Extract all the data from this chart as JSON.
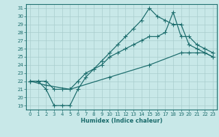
{
  "xlabel": "Humidex (Indice chaleur)",
  "ylabel": "",
  "bg_color": "#c8e8e8",
  "line_color": "#1a6b6b",
  "grid_color": "#a8cccc",
  "xlim": [
    -0.5,
    23.5
  ],
  "ylim": [
    18.5,
    31.5
  ],
  "xticks": [
    0,
    1,
    2,
    3,
    4,
    5,
    6,
    7,
    8,
    9,
    10,
    11,
    12,
    13,
    14,
    15,
    16,
    17,
    18,
    19,
    20,
    21,
    22,
    23
  ],
  "yticks": [
    19,
    20,
    21,
    22,
    23,
    24,
    25,
    26,
    27,
    28,
    29,
    30,
    31
  ],
  "curve1_x": [
    0,
    1,
    2,
    3,
    4,
    5,
    6,
    7,
    8,
    9,
    10,
    11,
    12,
    13,
    14,
    15,
    16,
    17,
    18,
    19,
    20,
    21,
    22,
    23
  ],
  "curve1_y": [
    22.0,
    22.0,
    21.0,
    19.0,
    19.0,
    19.0,
    21.0,
    22.5,
    23.5,
    24.5,
    25.5,
    26.5,
    27.5,
    28.5,
    29.5,
    31.0,
    30.0,
    29.5,
    29.0,
    29.0,
    26.5,
    26.0,
    25.5,
    25.0
  ],
  "curve2_x": [
    0,
    1,
    2,
    3,
    4,
    5,
    6,
    7,
    8,
    9,
    10,
    11,
    12,
    13,
    14,
    15,
    16,
    17,
    18,
    19,
    20,
    21,
    22,
    23
  ],
  "curve2_y": [
    22.0,
    22.0,
    22.0,
    21.0,
    21.0,
    21.0,
    22.0,
    23.0,
    23.5,
    24.0,
    25.0,
    25.5,
    26.0,
    26.5,
    27.0,
    27.5,
    27.5,
    28.0,
    30.5,
    27.5,
    27.5,
    26.5,
    26.0,
    25.5
  ],
  "curve3_x": [
    0,
    2,
    5,
    10,
    15,
    19,
    20,
    21,
    22,
    23
  ],
  "curve3_y": [
    22.0,
    21.5,
    21.0,
    22.5,
    24.0,
    25.5,
    25.5,
    25.5,
    25.5,
    25.0
  ]
}
